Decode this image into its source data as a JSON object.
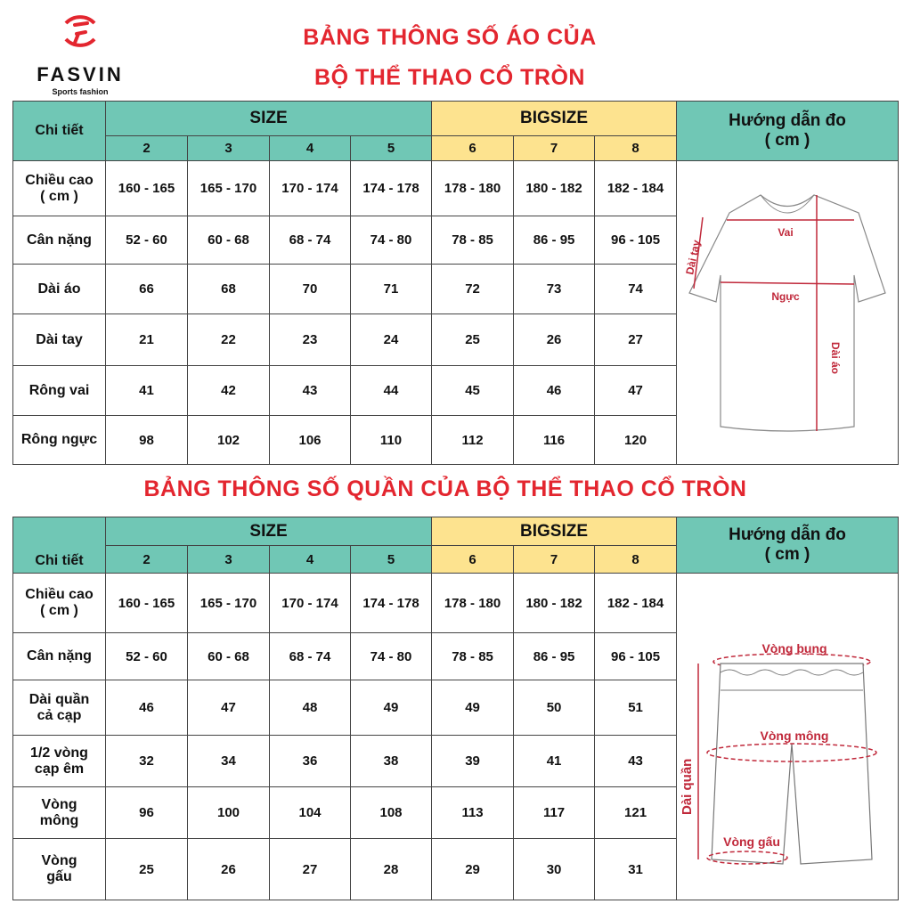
{
  "logo": {
    "brand": "FASVIN",
    "tagline": "Sports fashion",
    "color": "#e3262f"
  },
  "shirt": {
    "title_line1": "BẢNG THÔNG SỐ ÁO CỦA",
    "title_line2": "BỘ THỂ THAO CỔ TRÒN",
    "header": {
      "detail": "Chi tiết",
      "size": "SIZE",
      "bigsize": "BIGSIZE",
      "guide": "Hướng dẫn đo",
      "guide_unit": "( cm )"
    },
    "sizes": [
      "2",
      "3",
      "4",
      "5",
      "6",
      "7",
      "8"
    ],
    "rows": [
      {
        "label": "Chiều cao",
        "label2": "( cm )",
        "values": [
          "160 - 165",
          "165 - 170",
          "170 - 174",
          "174 - 178",
          "178 - 180",
          "180 - 182",
          "182 - 184"
        ]
      },
      {
        "label": "Cân nặng",
        "label2": "",
        "values": [
          "52 - 60",
          "60 - 68",
          "68 - 74",
          "74 - 80",
          "78 - 85",
          "86 - 95",
          "96 - 105"
        ]
      },
      {
        "label": "Dài áo",
        "label2": "",
        "values": [
          "66",
          "68",
          "70",
          "71",
          "72",
          "73",
          "74"
        ]
      },
      {
        "label": "Dài tay",
        "label2": "",
        "values": [
          "21",
          "22",
          "23",
          "24",
          "25",
          "26",
          "27"
        ]
      },
      {
        "label": "Rông vai",
        "label2": "",
        "values": [
          "41",
          "42",
          "43",
          "44",
          "45",
          "46",
          "47"
        ]
      },
      {
        "label": "Rông ngực",
        "label2": "",
        "values": [
          "98",
          "102",
          "106",
          "110",
          "112",
          "116",
          "120"
        ]
      }
    ],
    "diagram": {
      "vai": "Vai",
      "nguc": "Ngực",
      "dai_ao": "Dài áo",
      "dai_tay": "Dài tay"
    }
  },
  "pants": {
    "title": "BẢNG THÔNG SỐ QUẦN CỦA BỘ THỂ THAO CỔ TRÒN",
    "header": {
      "detail": "Chi tiết",
      "size": "SIZE",
      "bigsize": "BIGSIZE",
      "guide": "Hướng dẫn đo",
      "guide_unit": "( cm )"
    },
    "sizes": [
      "2",
      "3",
      "4",
      "5",
      "6",
      "7",
      "8"
    ],
    "rows": [
      {
        "label": "Chiều cao",
        "label2": "( cm )",
        "values": [
          "160 - 165",
          "165 - 170",
          "170 - 174",
          "174 - 178",
          "178 - 180",
          "180 - 182",
          "182 - 184"
        ]
      },
      {
        "label": "Cân nặng",
        "label2": "",
        "values": [
          "52 - 60",
          "60 - 68",
          "68 - 74",
          "74 - 80",
          "78 - 85",
          "86 - 95",
          "96 - 105"
        ]
      },
      {
        "label": "Dài quần",
        "label2": "cả cạp",
        "values": [
          "46",
          "47",
          "48",
          "49",
          "49",
          "50",
          "51"
        ]
      },
      {
        "label": "1/2 vòng",
        "label2": "cạp êm",
        "values": [
          "32",
          "34",
          "36",
          "38",
          "39",
          "41",
          "43"
        ]
      },
      {
        "label": "Vòng",
        "label2": "mông",
        "values": [
          "96",
          "100",
          "104",
          "108",
          "113",
          "117",
          "121"
        ]
      },
      {
        "label": "Vòng",
        "label2": "gấu",
        "values": [
          "25",
          "26",
          "27",
          "28",
          "29",
          "30",
          "31"
        ]
      }
    ],
    "diagram": {
      "vong_bung": "Vòng bụng",
      "vong_mong": "Vòng mông",
      "vong_gau": "Vòng gấu",
      "dai_quan": "Dài quần"
    }
  },
  "colors": {
    "title_red": "#e3262f",
    "teal": "#70c7b5",
    "yellow": "#fde38f"
  }
}
